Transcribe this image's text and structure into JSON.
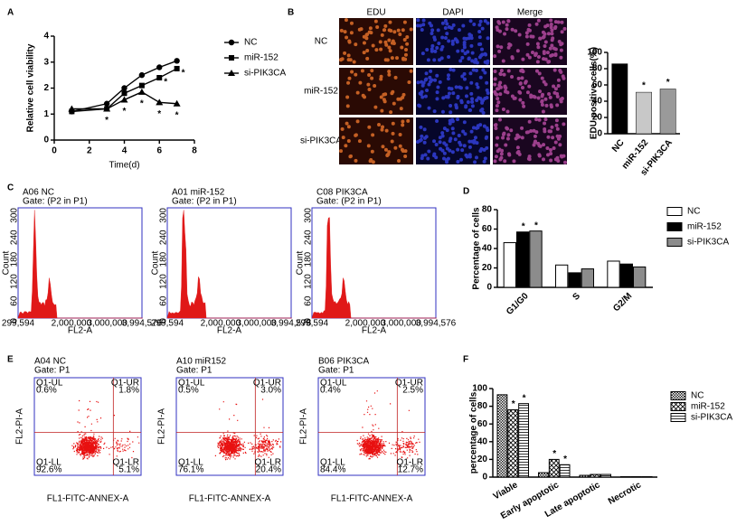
{
  "panel_labels": [
    "A",
    "B",
    "C",
    "D",
    "E",
    "F"
  ],
  "chart_data": [
    {
      "type": "line",
      "x_label": "Time(d)",
      "y_label": "Relative cell viability",
      "x": [
        1,
        3,
        4,
        5,
        6,
        7
      ],
      "xlim": [
        0,
        8
      ],
      "xticks": [
        0,
        2,
        4,
        6,
        8
      ],
      "ylim": [
        0,
        4
      ],
      "yticks": [
        0,
        1,
        2,
        3,
        4
      ],
      "significance_label": "*",
      "series": [
        {
          "name": "NC",
          "color": "#000000",
          "marker": "circle",
          "values": [
            1.1,
            1.4,
            2.0,
            2.5,
            2.8,
            3.05
          ],
          "significant": [
            false,
            false,
            false,
            false,
            false,
            false
          ]
        },
        {
          "name": "miR-152",
          "color": "#000000",
          "marker": "square",
          "values": [
            1.1,
            1.2,
            1.8,
            2.1,
            2.4,
            2.75
          ],
          "significant": [
            false,
            false,
            false,
            false,
            true,
            true
          ]
        },
        {
          "name": "si-PIK3CA",
          "color": "#000000",
          "marker": "triangle",
          "values": [
            1.2,
            1.2,
            1.55,
            1.85,
            1.45,
            1.4
          ],
          "significant": [
            false,
            true,
            true,
            true,
            true,
            true
          ]
        }
      ]
    },
    {
      "type": "bar",
      "y_label": "EDU positive cells(%)",
      "categories": [
        "NC",
        "miR-152",
        "si-PIK3CA"
      ],
      "values": [
        86,
        51,
        55
      ],
      "colors": [
        "#000000",
        "#c8c8c8",
        "#9a9a9a"
      ],
      "significant": [
        false,
        true,
        true
      ],
      "significance_label": "*",
      "ylim": [
        0,
        100
      ],
      "yticks": [
        0,
        20,
        40,
        60,
        80,
        100
      ]
    },
    {
      "type": "grouped-bar",
      "y_label": "Percentage of cells",
      "categories": [
        "G1/G0",
        "S",
        "G2/M"
      ],
      "ylim": [
        0,
        80
      ],
      "yticks": [
        0,
        20,
        40,
        60,
        80
      ],
      "significance_label": "*",
      "series": [
        {
          "name": "NC",
          "color": "#ffffff",
          "values": [
            46,
            23,
            27
          ],
          "significant": [
            false,
            false,
            false
          ]
        },
        {
          "name": "miR-152",
          "color": "#000000",
          "values": [
            57,
            15,
            24
          ],
          "significant": [
            true,
            false,
            false
          ]
        },
        {
          "name": "si-PIK3CA",
          "color": "#8c8c8c",
          "values": [
            58,
            19,
            21
          ],
          "significant": [
            true,
            false,
            false
          ]
        }
      ]
    },
    {
      "type": "grouped-bar",
      "y_label": "percentage of cells",
      "categories": [
        "Viable",
        "Early apoptotic",
        "Late apoptotic",
        "Necrotic"
      ],
      "ylim": [
        0,
        100
      ],
      "yticks": [
        0,
        20,
        40,
        60,
        80,
        100
      ],
      "significance_label": "*",
      "series": [
        {
          "name": "NC",
          "pattern": "checker",
          "values": [
            93,
            5,
            2,
            0.5
          ],
          "significant": [
            false,
            false,
            false,
            false
          ]
        },
        {
          "name": "miR-152",
          "pattern": "cross",
          "values": [
            76,
            20,
            3,
            0.5
          ],
          "significant": [
            true,
            true,
            false,
            false
          ]
        },
        {
          "name": "si-PIK3CA",
          "pattern": "lines",
          "values": [
            83,
            14,
            3,
            0.5
          ],
          "significant": [
            true,
            true,
            false,
            false
          ]
        }
      ]
    }
  ],
  "microscopy": {
    "columns": [
      "EDU",
      "DAPI",
      "Merge"
    ],
    "rows": [
      "NC",
      "miR-152",
      "si-PIK3CA"
    ]
  },
  "flow_histograms": {
    "gate": "Gate: (P2 in P1)",
    "y_label": "Count",
    "x_label": "FL2-A",
    "yticks": [
      0,
      60,
      120,
      180,
      240,
      300
    ],
    "xticks": [
      "299,594",
      "2,000,000",
      "3,000,000",
      "3,994,576"
    ],
    "panels": [
      {
        "title": "A06 NC"
      },
      {
        "title": "A01 miR-152"
      },
      {
        "title": "C08 PIK3CA"
      }
    ]
  },
  "dot_plots": {
    "gate": "Gate: P1",
    "y_label": "FL2-PI-A",
    "x_label": "FL1-FITC-ANNEX-A",
    "quadrants": [
      "Q1-UL",
      "Q1-UR",
      "Q1-LL",
      "Q1-LR"
    ],
    "panels": [
      {
        "title": "A04 NC",
        "percentages": [
          "0.6%",
          "1.8%",
          "92.6%",
          "5.1%"
        ]
      },
      {
        "title": "A10 miR152",
        "percentages": [
          "0.5%",
          "3.0%",
          "76.1%",
          "20.4%"
        ]
      },
      {
        "title": "B06 PIK3CA",
        "percentages": [
          "0.4%",
          "2.5%",
          "84.4%",
          "12.7%"
        ]
      }
    ]
  }
}
